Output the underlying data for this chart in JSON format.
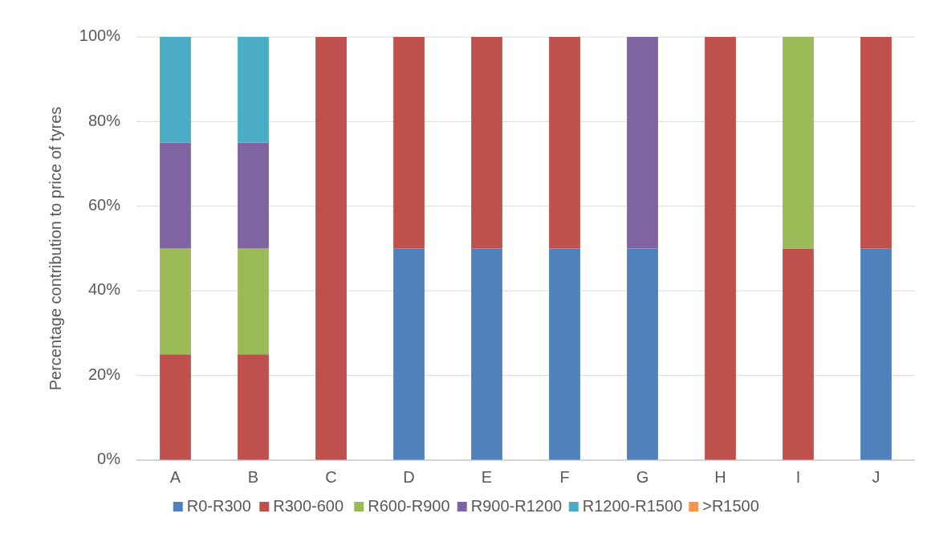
{
  "chart_data": {
    "type": "bar",
    "stacked": true,
    "ylabel": "Percentage contribution to price of tyres",
    "categories": [
      "A",
      "B",
      "C",
      "D",
      "E",
      "F",
      "G",
      "H",
      "I",
      "J"
    ],
    "series": [
      {
        "name": "R0-R300",
        "color": "#4f81bd",
        "values": [
          0,
          0,
          0,
          50,
          50,
          50,
          50,
          0,
          0,
          50
        ]
      },
      {
        "name": "R300-600",
        "color": "#c0504d",
        "values": [
          25,
          25,
          100,
          50,
          50,
          50,
          0,
          100,
          50,
          50
        ]
      },
      {
        "name": "R600-R900",
        "color": "#9bbb59",
        "values": [
          25,
          25,
          0,
          0,
          0,
          0,
          0,
          0,
          50,
          0
        ]
      },
      {
        "name": "R900-R1200",
        "color": "#8064a2",
        "values": [
          25,
          25,
          0,
          0,
          0,
          0,
          50,
          0,
          0,
          0
        ]
      },
      {
        "name": "R1200-R1500",
        "color": "#4bacc6",
        "values": [
          25,
          25,
          0,
          0,
          0,
          0,
          0,
          0,
          0,
          0
        ]
      },
      {
        "name": ">R1500",
        "color": "#f79646",
        "values": [
          0,
          0,
          0,
          0,
          0,
          0,
          0,
          0,
          0,
          0
        ]
      }
    ],
    "ylim": [
      0,
      100
    ],
    "yticks": [
      {
        "value": 0,
        "label": "0%"
      },
      {
        "value": 20,
        "label": "20%"
      },
      {
        "value": 40,
        "label": "40%"
      },
      {
        "value": 60,
        "label": "60%"
      },
      {
        "value": 80,
        "label": "80%"
      },
      {
        "value": 100,
        "label": "100%"
      }
    ],
    "grid": "y",
    "legend": "bottom"
  }
}
